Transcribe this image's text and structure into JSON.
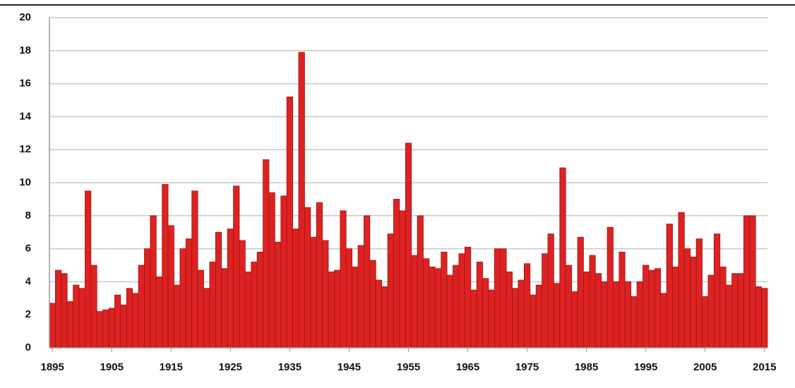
{
  "chart_data": {
    "type": "bar",
    "color": "#dd2222",
    "edge": "#a01515",
    "grid": true,
    "x": [
      1895,
      1896,
      1897,
      1898,
      1899,
      1900,
      1901,
      1902,
      1903,
      1904,
      1905,
      1906,
      1907,
      1908,
      1909,
      1910,
      1911,
      1912,
      1913,
      1914,
      1915,
      1916,
      1917,
      1918,
      1919,
      1920,
      1921,
      1922,
      1923,
      1924,
      1925,
      1926,
      1927,
      1928,
      1929,
      1930,
      1931,
      1932,
      1933,
      1934,
      1935,
      1936,
      1937,
      1938,
      1939,
      1940,
      1941,
      1942,
      1943,
      1944,
      1945,
      1946,
      1947,
      1948,
      1949,
      1950,
      1951,
      1952,
      1953,
      1954,
      1955,
      1956,
      1957,
      1958,
      1959,
      1960,
      1961,
      1962,
      1963,
      1964,
      1965,
      1966,
      1967,
      1968,
      1969,
      1970,
      1971,
      1972,
      1973,
      1974,
      1975,
      1976,
      1977,
      1978,
      1979,
      1980,
      1981,
      1982,
      1983,
      1984,
      1985,
      1986,
      1987,
      1988,
      1989,
      1990,
      1991,
      1992,
      1993,
      1994,
      1995,
      1996,
      1997,
      1998,
      1999,
      2000,
      2001,
      2002,
      2003,
      2004,
      2005,
      2006,
      2007,
      2008,
      2009,
      2010,
      2011,
      2012,
      2013,
      2014,
      2015
    ],
    "values": [
      2.7,
      4.7,
      4.5,
      2.8,
      3.8,
      3.6,
      9.5,
      5.0,
      2.2,
      2.3,
      2.4,
      3.2,
      2.6,
      3.6,
      3.3,
      5.0,
      6.0,
      8.0,
      4.3,
      9.9,
      7.4,
      3.8,
      6.0,
      6.6,
      9.5,
      4.7,
      3.6,
      5.2,
      7.0,
      4.8,
      7.2,
      9.8,
      6.5,
      4.6,
      5.2,
      5.8,
      11.4,
      9.4,
      6.4,
      9.2,
      15.2,
      7.2,
      17.9,
      8.5,
      6.7,
      8.8,
      6.5,
      4.6,
      4.7,
      8.3,
      6.0,
      4.9,
      6.2,
      8.0,
      5.3,
      4.1,
      3.7,
      6.9,
      9.0,
      8.3,
      12.4,
      5.6,
      8.0,
      5.4,
      4.9,
      4.8,
      5.8,
      4.4,
      5.0,
      5.7,
      6.1,
      3.5,
      5.2,
      4.2,
      3.5,
      6.0,
      6.0,
      4.6,
      3.6,
      4.1,
      5.1,
      3.2,
      3.8,
      5.7,
      6.9,
      3.9,
      10.9,
      5.0,
      3.4,
      6.7,
      4.6,
      5.6,
      4.5,
      4.0,
      7.3,
      4.0,
      5.8,
      4.0,
      3.1,
      4.0,
      5.0,
      4.7,
      4.8,
      3.3,
      7.5,
      4.9,
      8.2,
      6.0,
      5.5,
      6.6,
      3.1,
      4.4,
      6.9,
      4.9,
      3.8,
      4.5,
      4.5,
      8.0,
      8.0,
      3.7,
      3.6
    ],
    "xlim": [
      1894.5,
      2015.5
    ],
    "xticks": [
      1895,
      1905,
      1915,
      1925,
      1935,
      1945,
      1955,
      1965,
      1975,
      1985,
      1995,
      2005,
      2015
    ],
    "ylim": [
      0,
      20
    ],
    "yticks": [
      0,
      2,
      4,
      6,
      8,
      10,
      12,
      14,
      16,
      18,
      20
    ]
  }
}
